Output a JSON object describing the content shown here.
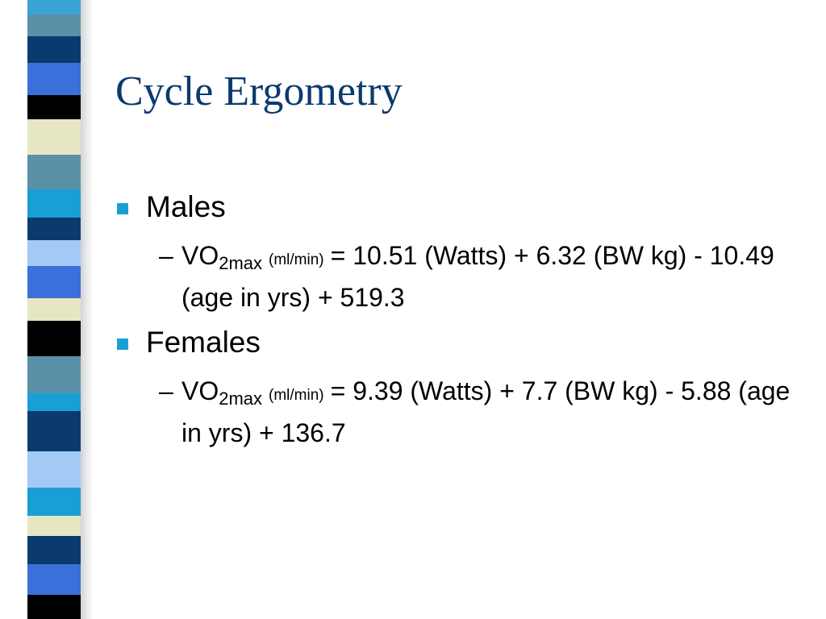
{
  "title": "Cycle Ergometry",
  "items": [
    {
      "label": "Males",
      "sub": {
        "marker": "–",
        "base": "VO",
        "subscript": "2max",
        "unit": "(ml/min)",
        "formula": "= 10.51 (Watts) + 6.32 (BW kg) - 10.49 (age in yrs) + 519.3"
      }
    },
    {
      "label": "Females",
      "sub": {
        "marker": "–",
        "base": "VO",
        "subscript": "2max",
        "unit": "(ml/min)",
        "formula": "= 9.39 (Watts) + 7.7 (BW kg) - 5.88 (age in yrs) + 136.7"
      }
    }
  ]
}
